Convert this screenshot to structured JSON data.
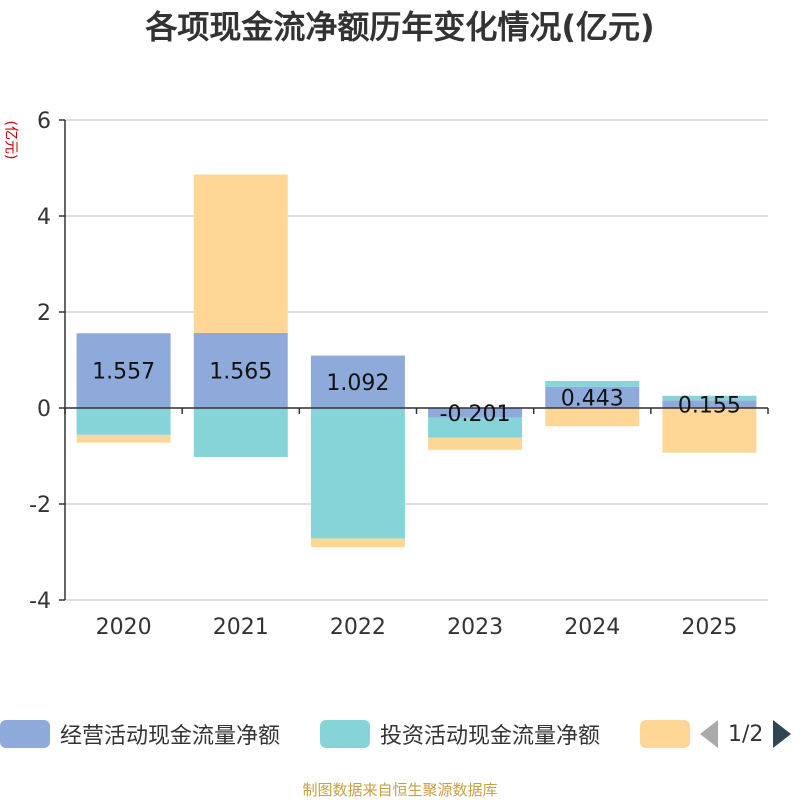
{
  "chart_data": {
    "type": "bar",
    "stacked": true,
    "title": "各项现金流净额历年变化情况(亿元)",
    "ylabel": "(亿元)",
    "categories": [
      "2020",
      "2021",
      "2022",
      "2023",
      "2024",
      "2025"
    ],
    "ylim": [
      -4,
      6
    ],
    "yticks": [
      -4,
      -2,
      0,
      2,
      4,
      6
    ],
    "series": [
      {
        "name": "经营活动现金流量净额",
        "color": "#8eaadb",
        "values": [
          1.557,
          1.565,
          1.092,
          -0.201,
          0.443,
          0.155
        ],
        "labels": [
          "1.557",
          "1.565",
          "1.092",
          "-0.201",
          "0.443",
          "0.155"
        ]
      },
      {
        "name": "投资活动现金流量净额",
        "color": "#86d4d8",
        "values": [
          -0.56,
          -1.02,
          -2.72,
          -0.42,
          0.12,
          0.1
        ]
      },
      {
        "name": "",
        "color": "#fed797",
        "values": [
          -0.16,
          3.3,
          -0.18,
          -0.25,
          -0.38,
          -0.93
        ]
      }
    ],
    "legend_position": "bottom"
  },
  "legend": {
    "items": [
      "经营活动现金流量净额",
      "投资活动现金流量净额",
      ""
    ],
    "page": "1/2"
  },
  "source": "制图数据来自恒生聚源数据库"
}
